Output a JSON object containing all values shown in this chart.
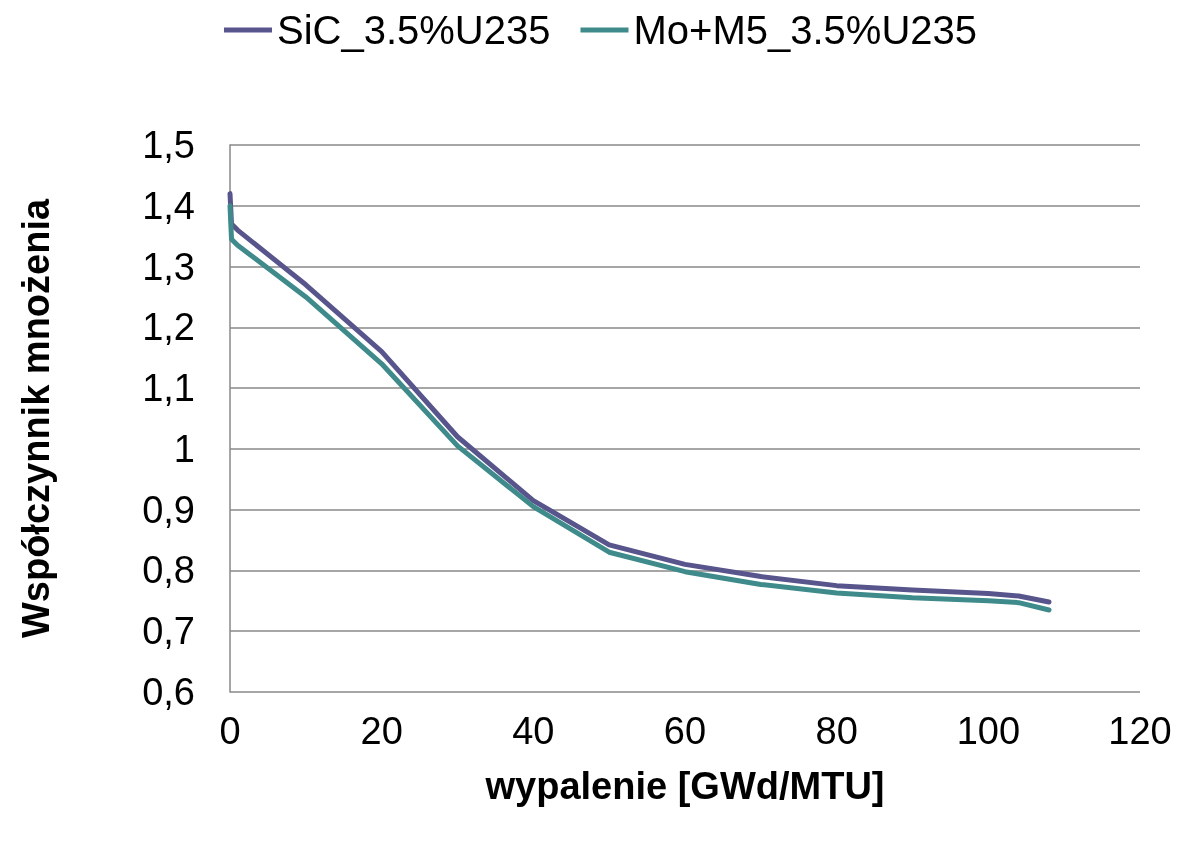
{
  "chart_data": {
    "type": "line",
    "xlabel": "wypalenie [GWd/MTU]",
    "ylabel": "Współczynnik mnożenia",
    "xlim": [
      0,
      120
    ],
    "xticks": [
      0,
      20,
      40,
      60,
      80,
      100,
      120
    ],
    "ylim": [
      0.6,
      1.5
    ],
    "yticks": [
      {
        "value": 0.6,
        "label": "0,6"
      },
      {
        "value": 0.7,
        "label": "0,7"
      },
      {
        "value": 0.8,
        "label": "0,8"
      },
      {
        "value": 0.9,
        "label": "0,9"
      },
      {
        "value": 1,
        "label": "1"
      },
      {
        "value": 1.1,
        "label": "1,1"
      },
      {
        "value": 1.2,
        "label": "1,2"
      },
      {
        "value": 1.3,
        "label": "1,3"
      },
      {
        "value": 1.4,
        "label": "1,4"
      },
      {
        "value": 1.5,
        "label": "1,5"
      }
    ],
    "grid": "y",
    "legend": "top",
    "marker": "none",
    "line_style": "solid",
    "series": [
      {
        "name": "SiC_3.5%U235",
        "color": "#58548c",
        "x": [
          0,
          0.2,
          1,
          10,
          20,
          30,
          40,
          50,
          60,
          70,
          80,
          90,
          100,
          104,
          108
        ],
        "values": [
          1.42,
          1.37,
          1.36,
          1.27,
          1.16,
          1.02,
          0.915,
          0.842,
          0.81,
          0.79,
          0.775,
          0.768,
          0.762,
          0.758,
          0.748
        ]
      },
      {
        "name": "Mo+M5_3.5%U235",
        "color": "#3f8a8a",
        "x": [
          0,
          0.2,
          1,
          10,
          20,
          30,
          40,
          50,
          60,
          70,
          80,
          90,
          100,
          104,
          108
        ],
        "values": [
          1.4,
          1.345,
          1.335,
          1.25,
          1.14,
          1.005,
          0.905,
          0.83,
          0.798,
          0.777,
          0.763,
          0.755,
          0.75,
          0.747,
          0.735
        ]
      }
    ]
  }
}
